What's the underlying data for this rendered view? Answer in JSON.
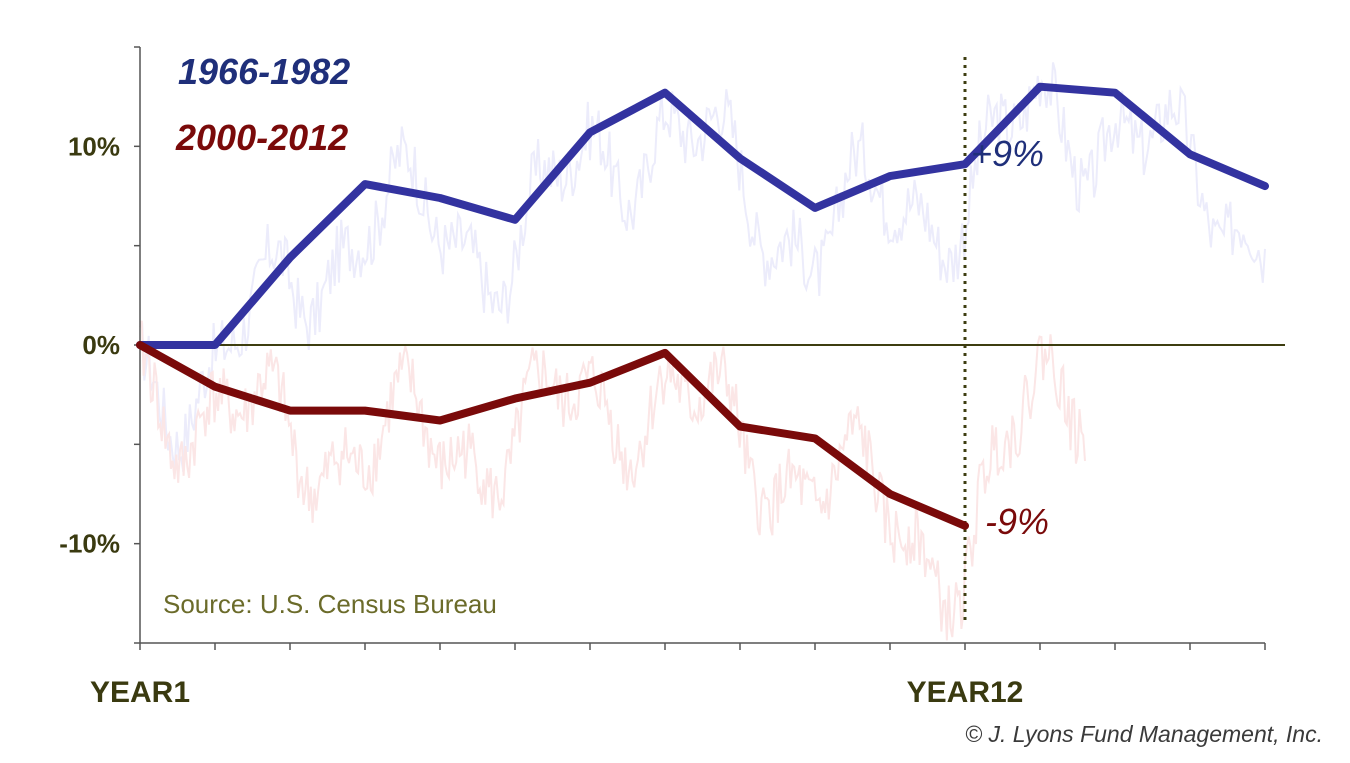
{
  "chart_data": {
    "type": "line",
    "x_labels": [
      "YEAR1",
      "YEAR12"
    ],
    "x": [
      1,
      2,
      3,
      4,
      5,
      6,
      7,
      8,
      9,
      10,
      11,
      12,
      13,
      14,
      15,
      16
    ],
    "xlim": [
      1,
      16
    ],
    "ylim": [
      -15,
      15
    ],
    "yticks": [
      {
        "value": 10,
        "label": "10%"
      },
      {
        "value": 0,
        "label": "0%"
      },
      {
        "value": -10,
        "label": "-10%"
      }
    ],
    "series": [
      {
        "name": "1966-1982",
        "color": "#3333a0",
        "x": [
          1,
          2,
          3,
          4,
          5,
          6,
          7,
          8,
          9,
          10,
          11,
          12,
          13,
          14,
          15,
          16
        ],
        "values": [
          0,
          0,
          4.4,
          8.1,
          7.4,
          6.3,
          10.7,
          12.7,
          9.4,
          6.9,
          8.5,
          9.1,
          13.0,
          12.7,
          9.6,
          8.0
        ]
      },
      {
        "name": "2000-2012",
        "color": "#7a0a0a",
        "x": [
          1,
          2,
          3,
          4,
          5,
          6,
          7,
          8,
          9,
          10,
          11,
          12
        ],
        "values": [
          0,
          -2.1,
          -3.3,
          -3.3,
          -3.8,
          -2.7,
          -1.9,
          -0.4,
          -4.1,
          -4.7,
          -7.5,
          -9.1
        ]
      }
    ],
    "background_series_colors": [
      "#ececfb",
      "#fbe6e6"
    ],
    "reference_line": {
      "x": 12,
      "color": "#3d3d10"
    },
    "annotations": [
      {
        "text": "+9%",
        "x": 12,
        "y": 9,
        "color": "#1f2f7a"
      },
      {
        "text": "-9%",
        "x": 12,
        "y": -9,
        "color": "#7a0a0a"
      }
    ],
    "legend_colors": {
      "1966-1982": "#1f2f7a",
      "2000-2012": "#7a0a0a"
    },
    "source": "Source: U.S. Census Bureau",
    "credit": "© J. Lyons Fund Management, Inc.",
    "zero_line": true,
    "grid": false,
    "legend_position": "top-left"
  }
}
